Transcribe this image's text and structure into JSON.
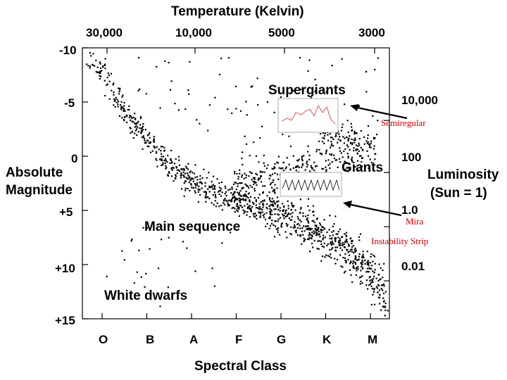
{
  "chart_data": {
    "type": "scatter",
    "title": "",
    "top_axis_label": "Temperature  (Kelvin)",
    "top_ticks": [
      "30,000",
      "10,000",
      "5000",
      "3000"
    ],
    "xlabel": "Spectral Class",
    "x_categories": [
      "O",
      "B",
      "A",
      "F",
      "G",
      "K",
      "M"
    ],
    "ylabel_left": [
      "Absolute",
      "Magnitude"
    ],
    "y_ticks_left": [
      "-10",
      "-5",
      "0",
      "+5",
      "+10",
      "+15"
    ],
    "ylim": [
      -10,
      15
    ],
    "y_inverted": true,
    "ylabel_right": [
      "Luminosity",
      "(Sun = 1)"
    ],
    "y_ticks_right": [
      "10,000",
      "100",
      "1.0",
      "0.01"
    ],
    "regions": {
      "supergiants": "Supergiants",
      "giants": "Giants",
      "main_sequence": "Main sequence",
      "white_dwarfs": "White dwarfs"
    },
    "annotations": {
      "semiregular": "Semiregular",
      "mira": "Mira",
      "instability_strip": "Instability Strip"
    },
    "grid": false,
    "legend": "none"
  },
  "colors": {
    "points": "#000000",
    "annotation": "#cc0000",
    "inset_line": "#cc3333"
  }
}
